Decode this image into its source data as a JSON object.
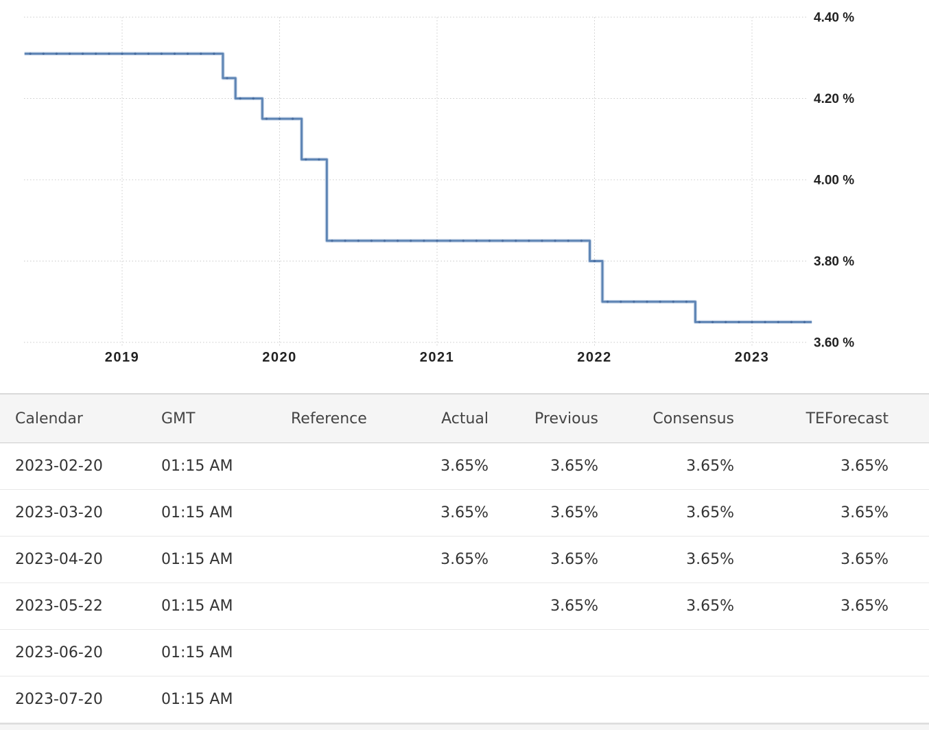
{
  "chart_data": {
    "type": "line",
    "style": "step",
    "title": "",
    "xlabel": "",
    "ylabel": "",
    "x_axis": {
      "min": 2018.38,
      "max": 2023.38,
      "ticks": [
        2019,
        2020,
        2021,
        2022,
        2023
      ],
      "tick_labels": [
        "2019",
        "2020",
        "2021",
        "2022",
        "2023"
      ]
    },
    "y_axis": {
      "min": 3.6,
      "max": 4.4,
      "ticks": [
        4.4,
        4.2,
        4.0,
        3.8,
        3.6
      ],
      "tick_labels": [
        "4.40 %",
        "4.20 %",
        "4.00 %",
        "3.80 %",
        "3.60 %"
      ]
    },
    "grid": "dotted",
    "legend": "none",
    "series": [
      {
        "name": "rate-percent",
        "segments": [
          {
            "value": 4.31,
            "from": 2018.38,
            "to": 2019.64
          },
          {
            "value": 4.25,
            "from": 2019.64,
            "to": 2019.72
          },
          {
            "value": 4.2,
            "from": 2019.72,
            "to": 2019.89
          },
          {
            "value": 4.15,
            "from": 2019.89,
            "to": 2020.14
          },
          {
            "value": 4.05,
            "from": 2020.14,
            "to": 2020.3
          },
          {
            "value": 3.85,
            "from": 2020.3,
            "to": 2021.97
          },
          {
            "value": 3.8,
            "from": 2021.97,
            "to": 2022.05
          },
          {
            "value": 3.7,
            "from": 2022.05,
            "to": 2022.64
          },
          {
            "value": 3.65,
            "from": 2022.64,
            "to": 2023.38
          }
        ]
      }
    ],
    "colors": {
      "line": "#5d84b4",
      "line_halo": "#adc3de",
      "marker": "#44699c",
      "grid": "#c9c9c9",
      "axis_label": "#222222"
    }
  },
  "table": {
    "columns": [
      {
        "key": "calendar",
        "label": "Calendar",
        "align": "left"
      },
      {
        "key": "gmt",
        "label": "GMT",
        "align": "left"
      },
      {
        "key": "reference",
        "label": "Reference",
        "align": "left"
      },
      {
        "key": "actual",
        "label": "Actual",
        "align": "right"
      },
      {
        "key": "previous",
        "label": "Previous",
        "align": "right"
      },
      {
        "key": "consensus",
        "label": "Consensus",
        "align": "right"
      },
      {
        "key": "teforecast",
        "label": "TEForecast",
        "align": "right"
      }
    ],
    "rows": [
      [
        "2023-02-20",
        "01:15 AM",
        "",
        "3.65%",
        "3.65%",
        "3.65%",
        "3.65%"
      ],
      [
        "2023-03-20",
        "01:15 AM",
        "",
        "3.65%",
        "3.65%",
        "3.65%",
        "3.65%"
      ],
      [
        "2023-04-20",
        "01:15 AM",
        "",
        "3.65%",
        "3.65%",
        "3.65%",
        "3.65%"
      ],
      [
        "2023-05-22",
        "01:15 AM",
        "",
        "",
        "3.65%",
        "3.65%",
        "3.65%"
      ],
      [
        "2023-06-20",
        "01:15 AM",
        "",
        "",
        "",
        "",
        ""
      ],
      [
        "2023-07-20",
        "01:15 AM",
        "",
        "",
        "",
        "",
        ""
      ]
    ]
  }
}
